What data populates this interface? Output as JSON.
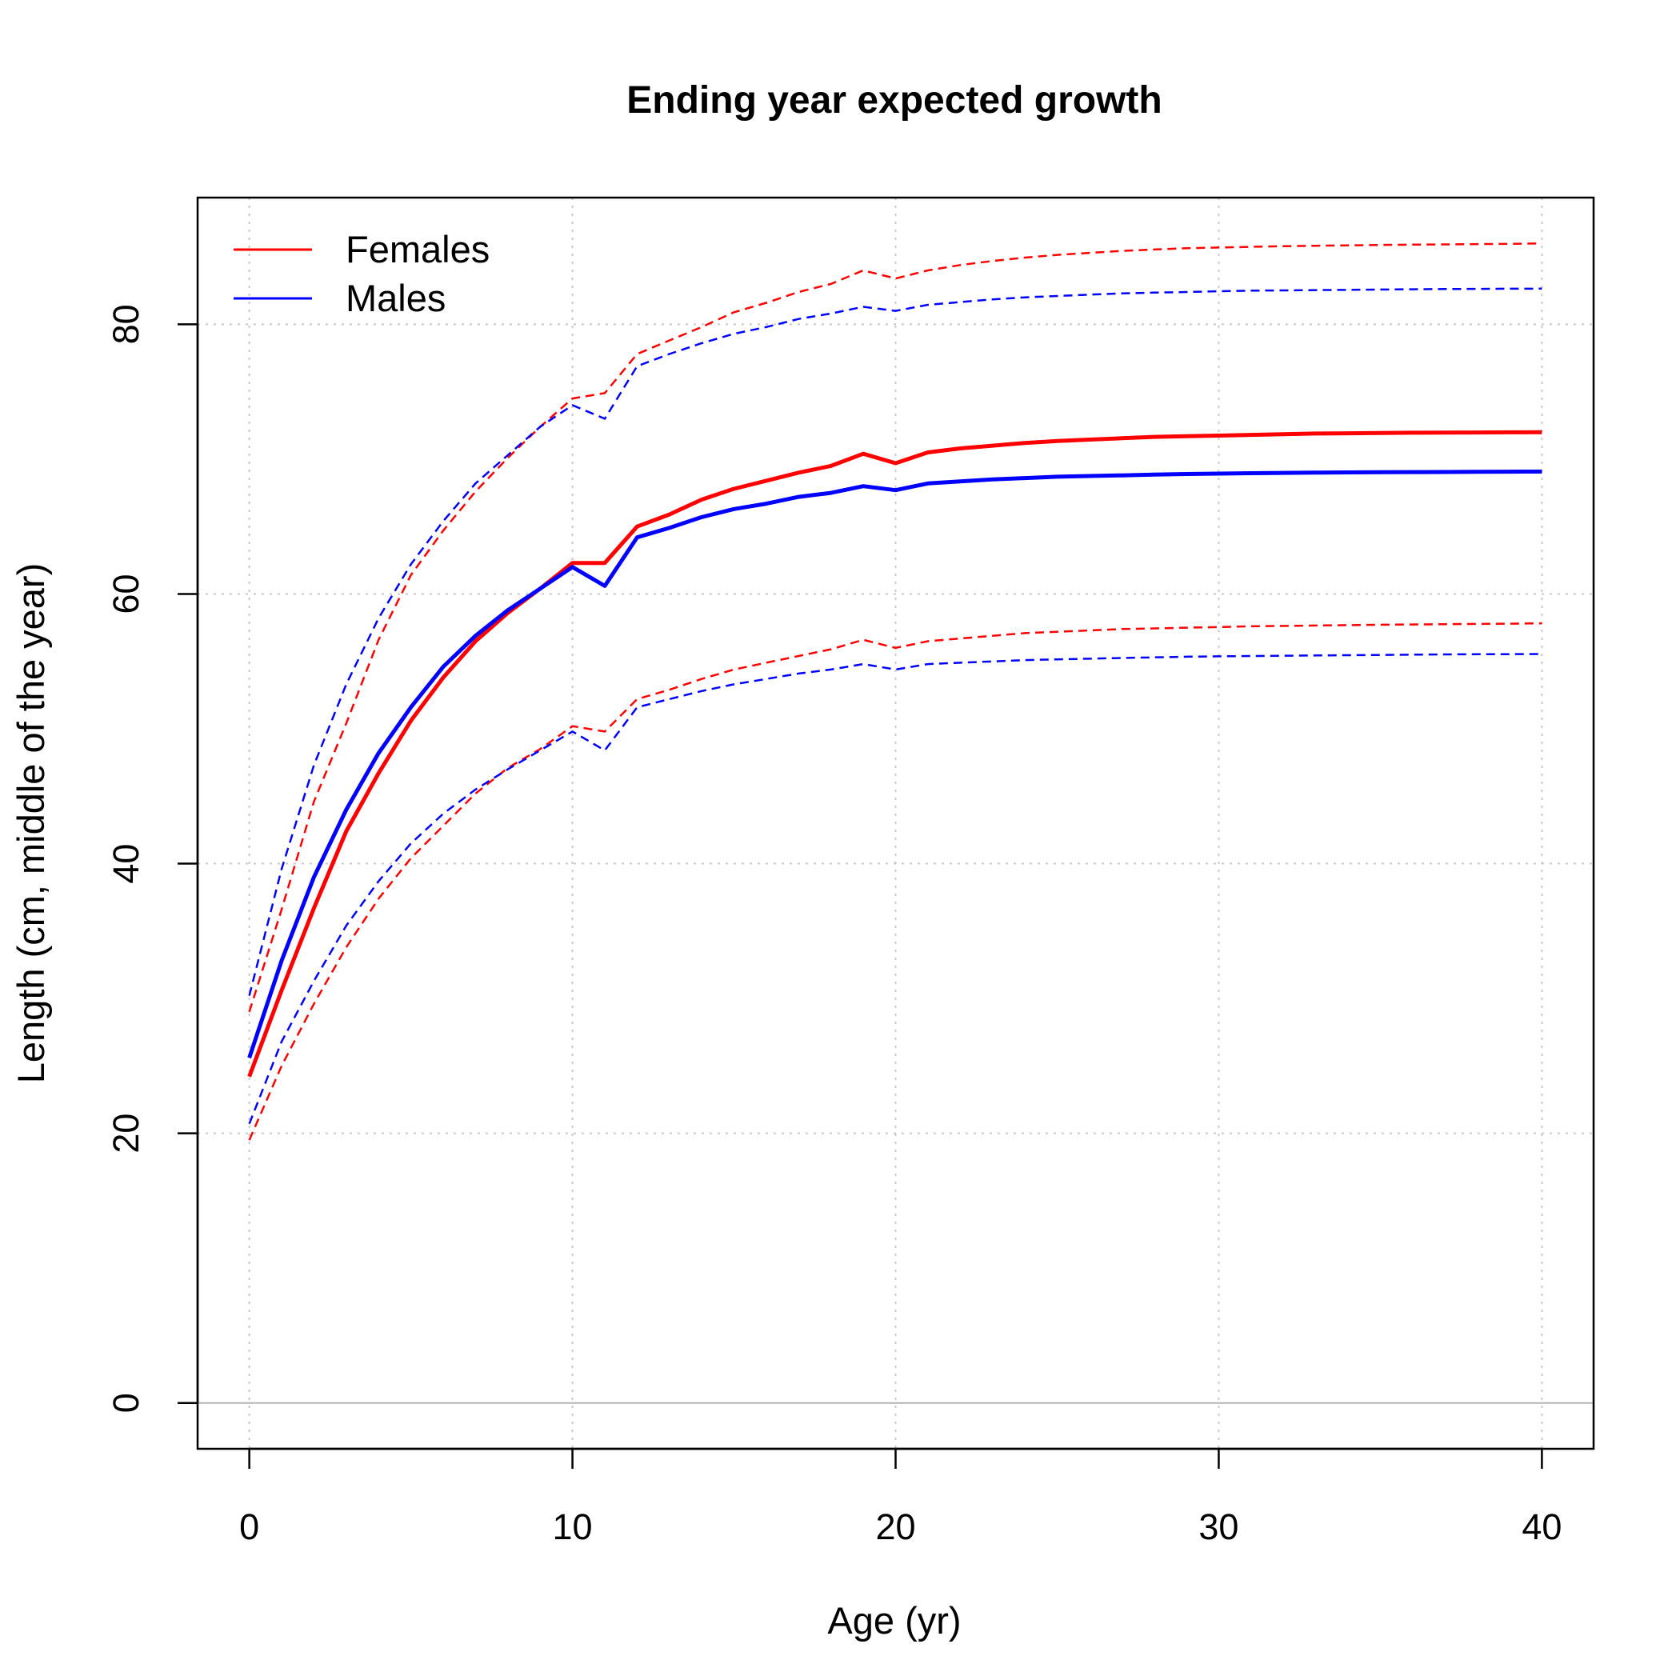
{
  "chart_data": {
    "type": "line",
    "title": "Ending year expected growth",
    "xlabel": "Age (yr)",
    "ylabel": "Length (cm, middle of the year)",
    "xlim": [
      -1.6,
      41.6
    ],
    "ylim": [
      -3.4,
      89.4
    ],
    "xticks": [
      0,
      10,
      20,
      30,
      40
    ],
    "yticks": [
      0,
      20,
      40,
      60,
      80
    ],
    "grid": true,
    "legend_position": "top-left",
    "colors": {
      "Females": "#ff0000",
      "Males": "#0000ff",
      "grid": "#c8c8c8",
      "zero_line": "#b4b4b4"
    },
    "x": [
      0,
      1,
      2,
      3,
      4,
      5,
      6,
      7,
      8,
      9,
      10,
      11,
      12,
      13,
      14,
      15,
      16,
      17,
      18,
      19,
      20,
      21,
      22,
      23,
      24,
      25,
      26,
      27,
      28,
      29,
      30,
      31,
      32,
      33,
      34,
      35,
      36,
      37,
      38,
      39,
      40
    ],
    "series": [
      {
        "name": "Females",
        "color": "#ff0000",
        "values": [
          24.2,
          30.6,
          36.7,
          42.4,
          46.7,
          50.6,
          53.8,
          56.5,
          58.6,
          60.4,
          62.3,
          62.3,
          65.0,
          65.9,
          67.0,
          67.8,
          68.4,
          69.0,
          69.5,
          70.4,
          69.7,
          70.5,
          70.8,
          71.0,
          71.2,
          71.35,
          71.45,
          71.55,
          71.65,
          71.7,
          71.75,
          71.8,
          71.85,
          71.9,
          71.92,
          71.94,
          71.96,
          71.97,
          71.98,
          71.99,
          72.0
        ],
        "lower": [
          19.5,
          25.0,
          29.6,
          33.8,
          37.4,
          40.4,
          42.8,
          45.2,
          47.1,
          48.5,
          50.2,
          49.8,
          52.2,
          52.9,
          53.7,
          54.4,
          54.9,
          55.4,
          55.9,
          56.6,
          56.0,
          56.5,
          56.7,
          56.9,
          57.1,
          57.2,
          57.3,
          57.4,
          57.45,
          57.5,
          57.55,
          57.6,
          57.63,
          57.66,
          57.69,
          57.72,
          57.74,
          57.76,
          57.78,
          57.8,
          57.82
        ],
        "upper": [
          29.0,
          36.6,
          44.6,
          50.4,
          56.6,
          61.4,
          64.7,
          67.6,
          70.1,
          72.4,
          74.5,
          74.9,
          77.8,
          78.8,
          79.8,
          80.9,
          81.6,
          82.4,
          83.0,
          84.0,
          83.4,
          84.0,
          84.4,
          84.7,
          84.95,
          85.15,
          85.3,
          85.45,
          85.55,
          85.65,
          85.7,
          85.75,
          85.8,
          85.83,
          85.86,
          85.89,
          85.91,
          85.93,
          85.95,
          85.97,
          86.0
        ]
      },
      {
        "name": "Males",
        "color": "#0000ff",
        "values": [
          25.6,
          32.8,
          39.0,
          44.0,
          48.2,
          51.6,
          54.6,
          56.9,
          58.8,
          60.4,
          62.0,
          60.6,
          64.2,
          64.9,
          65.7,
          66.3,
          66.7,
          67.2,
          67.5,
          68.0,
          67.7,
          68.2,
          68.35,
          68.5,
          68.6,
          68.7,
          68.75,
          68.8,
          68.85,
          68.9,
          68.93,
          68.96,
          68.98,
          69.0,
          69.02,
          69.03,
          69.04,
          69.05,
          69.06,
          69.07,
          69.08
        ],
        "lower": [
          20.7,
          26.8,
          31.3,
          35.4,
          38.7,
          41.5,
          43.7,
          45.5,
          47.0,
          48.4,
          49.8,
          48.4,
          51.6,
          52.2,
          52.8,
          53.3,
          53.7,
          54.1,
          54.4,
          54.8,
          54.4,
          54.8,
          54.9,
          55.0,
          55.1,
          55.15,
          55.2,
          55.25,
          55.3,
          55.35,
          55.38,
          55.4,
          55.42,
          55.44,
          55.46,
          55.48,
          55.5,
          55.52,
          55.53,
          55.54,
          55.55
        ],
        "upper": [
          30.2,
          39.6,
          47.3,
          53.3,
          58.2,
          62.2,
          65.4,
          68.2,
          70.3,
          72.4,
          74.0,
          73.0,
          76.9,
          77.8,
          78.6,
          79.3,
          79.8,
          80.4,
          80.8,
          81.3,
          81.0,
          81.45,
          81.65,
          81.85,
          82.0,
          82.1,
          82.2,
          82.3,
          82.35,
          82.4,
          82.45,
          82.5,
          82.52,
          82.54,
          82.56,
          82.58,
          82.6,
          82.62,
          82.63,
          82.64,
          82.65
        ]
      }
    ]
  }
}
